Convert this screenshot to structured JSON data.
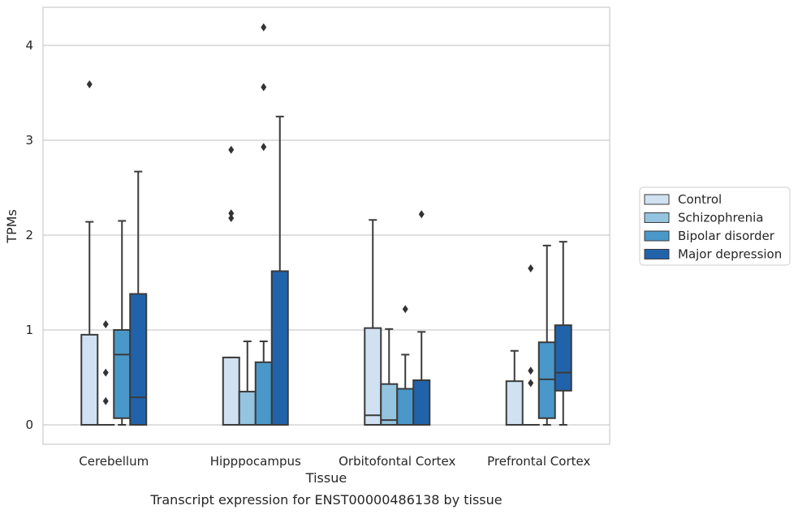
{
  "caption": "Transcript expression for ENST00000486138 by tissue",
  "chart_data": {
    "type": "box",
    "xlabel": "Tissue",
    "ylabel": "TPMs",
    "ylim": [
      -0.2,
      4.4
    ],
    "yticks": [
      0,
      1,
      2,
      3,
      4
    ],
    "grid": true,
    "legend_placement": "right",
    "categories": [
      "Cerebellum",
      "Hipppocampus",
      "Orbitofontal Cortex",
      "Prefrontal Cortex"
    ],
    "series": [
      {
        "name": "Control",
        "color": "#d0e1f2",
        "boxes": [
          {
            "whislo": 0,
            "q1": 0,
            "med": 0,
            "q3": 0.95,
            "whishi": 2.14,
            "fliers": [
              3.59
            ]
          },
          {
            "whislo": 0,
            "q1": 0,
            "med": 0,
            "q3": 0.71,
            "whishi": 0.71,
            "fliers": [
              2.18,
              2.23,
              2.9
            ]
          },
          {
            "whislo": 0,
            "q1": 0,
            "med": 0.1,
            "q3": 1.02,
            "whishi": 2.16,
            "fliers": []
          },
          {
            "whislo": 0,
            "q1": 0,
            "med": 0,
            "q3": 0.46,
            "whishi": 0.78,
            "fliers": []
          }
        ]
      },
      {
        "name": "Schizophrenia",
        "color": "#94c4df",
        "boxes": [
          {
            "whislo": 0,
            "q1": 0,
            "med": 0,
            "q3": 0,
            "whishi": 0,
            "fliers": [
              0.25,
              0.55,
              1.06
            ]
          },
          {
            "whislo": 0,
            "q1": 0,
            "med": 0,
            "q3": 0.35,
            "whishi": 0.88,
            "fliers": []
          },
          {
            "whislo": 0,
            "q1": 0,
            "med": 0.05,
            "q3": 0.43,
            "whishi": 1.01,
            "fliers": []
          },
          {
            "whislo": 0,
            "q1": 0,
            "med": 0,
            "q3": 0,
            "whishi": 0,
            "fliers": [
              0.44,
              0.57,
              1.65
            ]
          }
        ]
      },
      {
        "name": "Bipolar disorder",
        "color": "#4a98c9",
        "boxes": [
          {
            "whislo": 0,
            "q1": 0.07,
            "med": 0.74,
            "q3": 1.0,
            "whishi": 2.15,
            "fliers": []
          },
          {
            "whislo": 0,
            "q1": 0,
            "med": 0,
            "q3": 0.66,
            "whishi": 0.88,
            "fliers": [
              2.93,
              3.56,
              4.19
            ]
          },
          {
            "whislo": 0,
            "q1": 0,
            "med": 0,
            "q3": 0.38,
            "whishi": 0.74,
            "fliers": [
              1.22
            ]
          },
          {
            "whislo": 0,
            "q1": 0.07,
            "med": 0.48,
            "q3": 0.87,
            "whishi": 1.89,
            "fliers": []
          }
        ]
      },
      {
        "name": "Major depression",
        "color": "#2163aa",
        "boxes": [
          {
            "whislo": 0,
            "q1": 0,
            "med": 0.29,
            "q3": 1.38,
            "whishi": 2.67,
            "fliers": []
          },
          {
            "whislo": 0,
            "q1": 0,
            "med": 0,
            "q3": 1.62,
            "whishi": 3.25,
            "fliers": []
          },
          {
            "whislo": 0,
            "q1": 0,
            "med": 0,
            "q3": 0.47,
            "whishi": 0.98,
            "fliers": [
              2.22
            ]
          },
          {
            "whislo": 0,
            "q1": 0.36,
            "med": 0.55,
            "q3": 1.05,
            "whishi": 1.93,
            "fliers": []
          }
        ]
      }
    ]
  }
}
